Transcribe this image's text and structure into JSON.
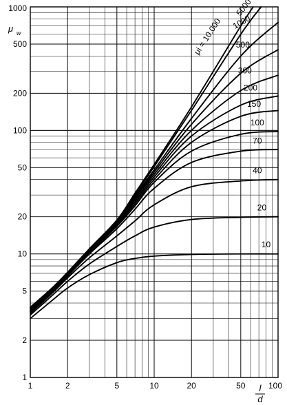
{
  "chart_data": {
    "type": "line",
    "xscale": "log",
    "yscale": "log",
    "xlim": [
      1,
      100
    ],
    "ylim": [
      1,
      1000
    ],
    "grid": true,
    "ylabel_main": "μ",
    "ylabel_sub": "w",
    "xlabel_num": "l",
    "xlabel_den": "d",
    "x_ticks": [
      {
        "value": 1,
        "label": "1"
      },
      {
        "value": 2,
        "label": "2"
      },
      {
        "value": 5,
        "label": "5"
      },
      {
        "value": 10,
        "label": "10"
      },
      {
        "value": 20,
        "label": "20"
      },
      {
        "value": 50,
        "label": "50"
      },
      {
        "value": 100,
        "label": "100"
      }
    ],
    "y_ticks": [
      {
        "value": 1,
        "label": "1"
      },
      {
        "value": 2,
        "label": "2"
      },
      {
        "value": 5,
        "label": "5"
      },
      {
        "value": 10,
        "label": "10"
      },
      {
        "value": 20,
        "label": "20"
      },
      {
        "value": 50,
        "label": "50"
      },
      {
        "value": 100,
        "label": "100"
      },
      {
        "value": 200,
        "label": "200"
      },
      {
        "value": 500,
        "label": "500"
      },
      {
        "value": 1000,
        "label": "1000"
      }
    ],
    "series": [
      {
        "name": "10",
        "points": [
          [
            1,
            3.0
          ],
          [
            1.5,
            4.2
          ],
          [
            2,
            5.3
          ],
          [
            3,
            6.8
          ],
          [
            5,
            8.5
          ],
          [
            7,
            9.2
          ],
          [
            10,
            9.6
          ],
          [
            20,
            9.9
          ],
          [
            50,
            10
          ],
          [
            100,
            10
          ]
        ]
      },
      {
        "name": "20",
        "points": [
          [
            1,
            3.2
          ],
          [
            1.5,
            4.6
          ],
          [
            2,
            6.0
          ],
          [
            3,
            8.3
          ],
          [
            5,
            11.5
          ],
          [
            7,
            14
          ],
          [
            10,
            16.5
          ],
          [
            20,
            19
          ],
          [
            50,
            19.8
          ],
          [
            100,
            20
          ]
        ]
      },
      {
        "name": "40",
        "points": [
          [
            1,
            3.3
          ],
          [
            1.5,
            4.8
          ],
          [
            2,
            6.4
          ],
          [
            3,
            9.3
          ],
          [
            5,
            14
          ],
          [
            7,
            18.5
          ],
          [
            10,
            25
          ],
          [
            20,
            35
          ],
          [
            50,
            39
          ],
          [
            100,
            40
          ]
        ]
      },
      {
        "name": "70",
        "points": [
          [
            1,
            3.4
          ],
          [
            1.5,
            4.9
          ],
          [
            2,
            6.6
          ],
          [
            3,
            10
          ],
          [
            5,
            16
          ],
          [
            7,
            23
          ],
          [
            10,
            34
          ],
          [
            20,
            55
          ],
          [
            50,
            68
          ],
          [
            100,
            70
          ]
        ]
      },
      {
        "name": "100",
        "points": [
          [
            1,
            3.5
          ],
          [
            1.5,
            5.0
          ],
          [
            2,
            6.7
          ],
          [
            3,
            10.2
          ],
          [
            5,
            16.7
          ],
          [
            7,
            24.5
          ],
          [
            10,
            38
          ],
          [
            20,
            68
          ],
          [
            50,
            93
          ],
          [
            100,
            98
          ]
        ]
      },
      {
        "name": "150",
        "points": [
          [
            1,
            3.5
          ],
          [
            1.5,
            5.0
          ],
          [
            2,
            6.8
          ],
          [
            3,
            10.4
          ],
          [
            5,
            17.2
          ],
          [
            7,
            25.5
          ],
          [
            10,
            40
          ],
          [
            20,
            80
          ],
          [
            50,
            130
          ],
          [
            100,
            145
          ]
        ]
      },
      {
        "name": "200",
        "points": [
          [
            1,
            3.6
          ],
          [
            1.5,
            5.1
          ],
          [
            2,
            6.8
          ],
          [
            3,
            10.5
          ],
          [
            5,
            17.5
          ],
          [
            7,
            26.5
          ],
          [
            10,
            42
          ],
          [
            20,
            90
          ],
          [
            50,
            160
          ],
          [
            100,
            190
          ]
        ]
      },
      {
        "name": "300",
        "points": [
          [
            1,
            3.6
          ],
          [
            1.5,
            5.1
          ],
          [
            2,
            6.9
          ],
          [
            3,
            10.6
          ],
          [
            5,
            17.8
          ],
          [
            7,
            27.5
          ],
          [
            10,
            44
          ],
          [
            20,
            100
          ],
          [
            50,
            210
          ],
          [
            100,
            280
          ]
        ]
      },
      {
        "name": "500",
        "points": [
          [
            1,
            3.6
          ],
          [
            1.5,
            5.2
          ],
          [
            2,
            6.9
          ],
          [
            3,
            10.7
          ],
          [
            5,
            18
          ],
          [
            7,
            28.5
          ],
          [
            10,
            46
          ],
          [
            20,
            112
          ],
          [
            50,
            290
          ],
          [
            100,
            450
          ]
        ]
      },
      {
        "name": "1000",
        "points": [
          [
            1,
            3.7
          ],
          [
            1.5,
            5.2
          ],
          [
            2,
            7.0
          ],
          [
            3,
            10.8
          ],
          [
            5,
            18.3
          ],
          [
            7,
            29.5
          ],
          [
            10,
            48
          ],
          [
            20,
            125
          ],
          [
            50,
            400
          ],
          [
            100,
            750
          ]
        ]
      },
      {
        "name": "5000",
        "points": [
          [
            1,
            3.7
          ],
          [
            1.5,
            5.2
          ],
          [
            2,
            7.0
          ],
          [
            3,
            10.9
          ],
          [
            5,
            18.6
          ],
          [
            7,
            30.5
          ],
          [
            10,
            51
          ],
          [
            20,
            145
          ],
          [
            50,
            600
          ],
          [
            73,
            1000
          ]
        ]
      },
      {
        "name": "μi = 10.000",
        "points": [
          [
            1,
            3.7
          ],
          [
            1.5,
            5.3
          ],
          [
            2,
            7.1
          ],
          [
            3,
            11
          ],
          [
            5,
            18.8
          ],
          [
            7,
            31
          ],
          [
            10,
            53
          ],
          [
            20,
            155
          ],
          [
            50,
            700
          ],
          [
            63,
            1000
          ]
        ]
      }
    ],
    "curve_labels": [
      {
        "text": "10",
        "x": 80,
        "y": 11.3,
        "rotate": 0
      },
      {
        "text": "20",
        "x": 74,
        "y": 22.5,
        "rotate": 0
      },
      {
        "text": "40",
        "x": 68,
        "y": 45,
        "rotate": 0
      },
      {
        "text": "70",
        "x": 68,
        "y": 78,
        "rotate": 0
      },
      {
        "text": "100",
        "x": 68,
        "y": 110,
        "rotate": 0
      },
      {
        "text": "150",
        "x": 64,
        "y": 155,
        "rotate": 0
      },
      {
        "text": "200",
        "x": 60,
        "y": 210,
        "rotate": 0
      },
      {
        "text": "300",
        "x": 54,
        "y": 290,
        "rotate": 0
      },
      {
        "text": "500",
        "x": 52,
        "y": 470,
        "rotate": 0
      },
      {
        "text": "1000",
        "x": 52,
        "y": 720,
        "rotate": -30
      },
      {
        "text": "5000",
        "x": 55,
        "y": 960,
        "rotate": -52
      },
      {
        "text": "μi = 10.000",
        "x": 28,
        "y": 560,
        "rotate": -57
      }
    ]
  }
}
